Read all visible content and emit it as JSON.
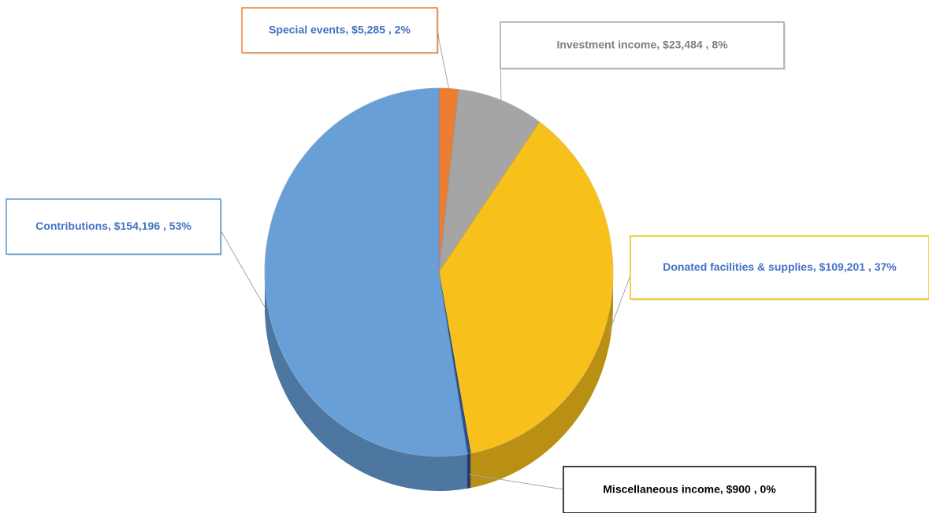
{
  "chart_data": {
    "type": "pie",
    "categories": [
      "Special events",
      "Investment income",
      "Donated facilities & supplies",
      "Miscellaneous income",
      "Contributions"
    ],
    "values": [
      5285,
      23484,
      109201,
      900,
      154196
    ],
    "value_labels": [
      "$5,285",
      "$23,484",
      "$109,201",
      "$900",
      "$154,196"
    ],
    "percents": [
      2,
      8,
      37,
      0,
      53
    ],
    "percent_labels": [
      "2%",
      "8%",
      "37%",
      "0%",
      "53%"
    ],
    "colors": [
      "#ED7D31",
      "#A5A5A5",
      "#F8C01A",
      "#2F4F8F",
      "#679FD6"
    ]
  }
}
